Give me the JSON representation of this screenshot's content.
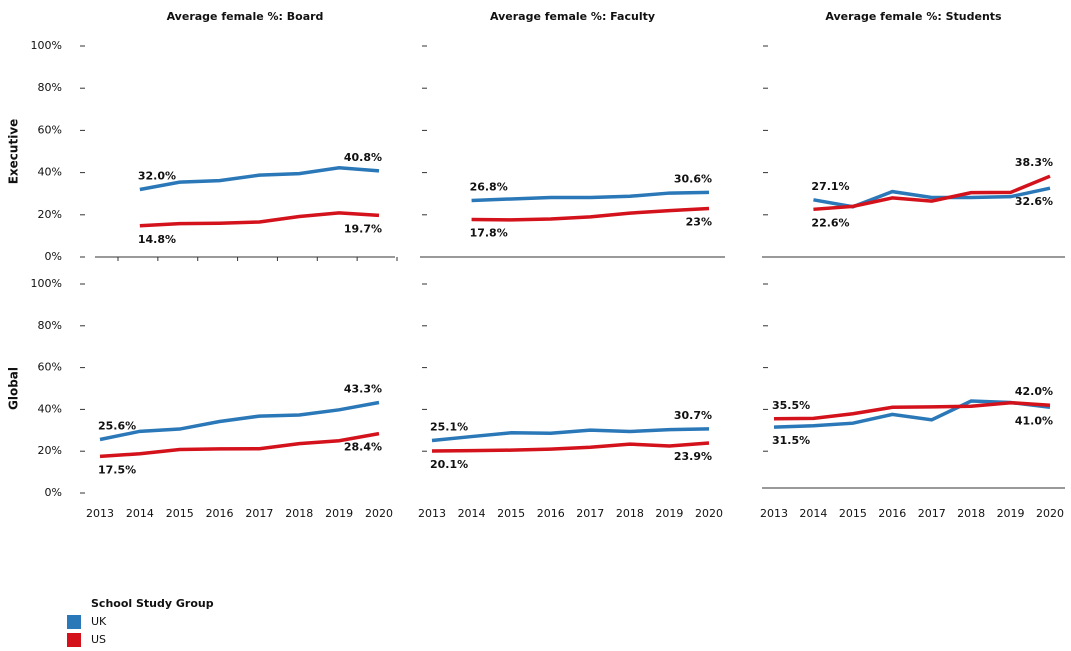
{
  "chart_data": [
    {
      "type": "line",
      "title": "Average female %: Board",
      "row_label": "Executive",
      "x": [
        2013,
        2014,
        2015,
        2016,
        2017,
        2018,
        2019,
        2020
      ],
      "series": [
        {
          "values": [
            null,
            32.0,
            35.5,
            36.2,
            38.8,
            39.5,
            42.3,
            40.8
          ],
          "value_labels": [
            null,
            "32.0%",
            null,
            null,
            null,
            null,
            null,
            "40.8%"
          ]
        },
        {
          "values": [
            null,
            14.8,
            15.8,
            16.0,
            16.6,
            19.2,
            20.9,
            19.7
          ],
          "value_labels": [
            null,
            "14.8%",
            null,
            null,
            null,
            null,
            null,
            "19.7%"
          ]
        }
      ],
      "ylim": [
        0,
        100
      ],
      "yticks": [
        {
          "value": 0,
          "label": "0%"
        },
        {
          "value": 20,
          "label": "20%"
        },
        {
          "value": 40,
          "label": "40%"
        },
        {
          "value": 60,
          "label": "60%"
        },
        {
          "value": 80,
          "label": "80%"
        },
        {
          "value": 100,
          "label": "100%"
        }
      ]
    },
    {
      "type": "line",
      "title": "Average female %: Faculty",
      "x": [
        2013,
        2014,
        2015,
        2016,
        2017,
        2018,
        2019,
        2020
      ],
      "series": [
        {
          "values": [
            null,
            26.8,
            27.5,
            28.2,
            28.2,
            28.8,
            30.3,
            30.6
          ],
          "value_labels": [
            null,
            "26.8%",
            null,
            null,
            null,
            null,
            null,
            "30.6%"
          ]
        },
        {
          "values": [
            null,
            17.8,
            17.6,
            18.0,
            19.0,
            20.8,
            22.0,
            23
          ],
          "value_labels": [
            null,
            "17.8%",
            null,
            null,
            null,
            null,
            null,
            "23%"
          ]
        }
      ],
      "ylim": [
        0,
        100
      ],
      "yticks": [
        20,
        40,
        60,
        80,
        100
      ]
    },
    {
      "type": "line",
      "title": "Average female %: Students",
      "x": [
        2013,
        2014,
        2015,
        2016,
        2017,
        2018,
        2019,
        2020
      ],
      "series": [
        {
          "values": [
            null,
            27.1,
            23.8,
            31.0,
            28.2,
            28.2,
            28.6,
            32.6
          ],
          "value_labels": [
            null,
            "27.1%",
            null,
            null,
            null,
            null,
            null,
            "32.6%"
          ]
        },
        {
          "values": [
            null,
            22.6,
            24.0,
            28.0,
            26.5,
            30.5,
            30.6,
            38.3
          ],
          "value_labels": [
            null,
            "22.6%",
            null,
            null,
            null,
            null,
            null,
            "38.3%"
          ]
        }
      ],
      "ylim": [
        0,
        100
      ],
      "yticks": [
        20,
        40,
        60,
        80,
        100
      ]
    },
    {
      "type": "line",
      "row_label": "Global",
      "x": [
        2013,
        2014,
        2015,
        2016,
        2017,
        2018,
        2019,
        2020
      ],
      "series": [
        {
          "values": [
            25.6,
            29.5,
            30.6,
            34.2,
            36.8,
            37.3,
            39.8,
            43.3
          ],
          "value_labels": [
            "25.6%",
            null,
            null,
            null,
            null,
            null,
            null,
            "43.3%"
          ]
        },
        {
          "values": [
            17.5,
            18.8,
            20.8,
            21.1,
            21.2,
            23.6,
            25.0,
            28.4
          ],
          "value_labels": [
            "17.5%",
            null,
            null,
            null,
            null,
            null,
            null,
            "28.4%"
          ]
        }
      ],
      "ylim": [
        0,
        100
      ],
      "yticks": [
        {
          "value": 0,
          "label": "0%"
        },
        {
          "value": 20,
          "label": "20%"
        },
        {
          "value": 40,
          "label": "40%"
        },
        {
          "value": 60,
          "label": "60%"
        },
        {
          "value": 80,
          "label": "80%"
        },
        {
          "value": 100,
          "label": "100%"
        }
      ]
    },
    {
      "type": "line",
      "x": [
        2013,
        2014,
        2015,
        2016,
        2017,
        2018,
        2019,
        2020
      ],
      "series": [
        {
          "values": [
            25.1,
            27.0,
            28.8,
            28.6,
            30.1,
            29.4,
            30.3,
            30.7
          ],
          "value_labels": [
            "25.1%",
            null,
            null,
            null,
            null,
            null,
            null,
            "30.7%"
          ]
        },
        {
          "values": [
            20.1,
            20.3,
            20.5,
            21.0,
            21.9,
            23.4,
            22.5,
            23.9
          ],
          "value_labels": [
            "20.1%",
            null,
            null,
            null,
            null,
            null,
            null,
            "23.9%"
          ]
        }
      ],
      "ylim": [
        0,
        100
      ],
      "yticks": [
        20,
        40,
        60,
        80,
        100
      ]
    },
    {
      "type": "line",
      "x": [
        2013,
        2014,
        2015,
        2016,
        2017,
        2018,
        2019,
        2020
      ],
      "series": [
        {
          "values": [
            31.5,
            32.2,
            33.4,
            37.6,
            35.0,
            44.0,
            43.3,
            41.0
          ],
          "value_labels": [
            "31.5%",
            null,
            null,
            null,
            null,
            null,
            null,
            "41.0%"
          ]
        },
        {
          "values": [
            35.5,
            35.7,
            37.9,
            41.0,
            41.2,
            41.5,
            43.2,
            42.0
          ],
          "value_labels": [
            "35.5%",
            null,
            null,
            null,
            null,
            null,
            null,
            "42.0%"
          ]
        }
      ],
      "ylim": [
        0,
        100
      ],
      "yticks": [
        20,
        40,
        60,
        80,
        100
      ]
    }
  ],
  "legend": {
    "title": "School Study Group",
    "items": [
      {
        "name": "UK",
        "color": "#2b78b8"
      },
      {
        "name": "US",
        "color": "#d3121c"
      }
    ]
  }
}
